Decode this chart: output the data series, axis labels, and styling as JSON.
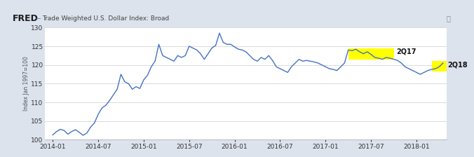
{
  "title": "Trade Weighted U.S. Dollar Index: Broad",
  "ylabel": "Index Jan 1997=100",
  "ylim": [
    100,
    130
  ],
  "yticks": [
    100,
    105,
    110,
    115,
    120,
    125,
    130
  ],
  "line_color": "#4472C4",
  "highlight_color": "#FFFF00",
  "bg_color": "#DCE3ED",
  "plot_bg_color": "#FFFFFF",
  "header_bg": "#D0D8E6",
  "annotation_2q17": "2Q17",
  "annotation_2q18": "2Q18",
  "xtick_positions": [
    0,
    6,
    12,
    18,
    24,
    30,
    36,
    42,
    48
  ],
  "xtick_labels": [
    "2014-01",
    "2014-07",
    "2015-01",
    "2015-07",
    "2016-01",
    "2016-07",
    "2017-01",
    "2017-07",
    "2018-01"
  ],
  "xlim": [
    -1,
    52
  ],
  "h2q17_x1": 39,
  "h2q17_x2": 45,
  "h2q17_y1": 121.5,
  "h2q17_y2": 124.5,
  "h2q18_x1": 50,
  "h2q18_x2": 52,
  "h2q18_y1": 118.3,
  "h2q18_y2": 121.0,
  "series": [
    [
      0.0,
      101.3
    ],
    [
      0.5,
      102.2
    ],
    [
      1.0,
      102.8
    ],
    [
      1.5,
      102.5
    ],
    [
      2.0,
      101.5
    ],
    [
      2.5,
      102.2
    ],
    [
      3.0,
      102.7
    ],
    [
      3.5,
      102.0
    ],
    [
      4.0,
      101.2
    ],
    [
      4.5,
      101.8
    ],
    [
      5.0,
      103.4
    ],
    [
      5.5,
      104.5
    ],
    [
      6.0,
      106.8
    ],
    [
      6.5,
      108.5
    ],
    [
      7.0,
      109.2
    ],
    [
      7.5,
      110.5
    ],
    [
      8.0,
      112.0
    ],
    [
      8.5,
      113.5
    ],
    [
      9.0,
      117.5
    ],
    [
      9.5,
      115.5
    ],
    [
      10.0,
      115.0
    ],
    [
      10.5,
      113.5
    ],
    [
      11.0,
      114.2
    ],
    [
      11.5,
      113.7
    ],
    [
      12.0,
      116.0
    ],
    [
      12.5,
      117.2
    ],
    [
      13.0,
      119.5
    ],
    [
      13.5,
      121.0
    ],
    [
      14.0,
      125.5
    ],
    [
      14.5,
      122.5
    ],
    [
      15.0,
      122.0
    ],
    [
      15.5,
      121.5
    ],
    [
      16.0,
      121.0
    ],
    [
      16.5,
      122.5
    ],
    [
      17.0,
      122.0
    ],
    [
      17.5,
      122.5
    ],
    [
      18.0,
      125.0
    ],
    [
      18.5,
      124.5
    ],
    [
      19.0,
      124.0
    ],
    [
      19.5,
      123.0
    ],
    [
      20.0,
      121.5
    ],
    [
      20.5,
      123.0
    ],
    [
      21.0,
      124.5
    ],
    [
      21.5,
      125.2
    ],
    [
      22.0,
      128.5
    ],
    [
      22.5,
      126.0
    ],
    [
      23.0,
      125.5
    ],
    [
      23.5,
      125.5
    ],
    [
      24.0,
      124.8
    ],
    [
      24.5,
      124.2
    ],
    [
      25.0,
      124.0
    ],
    [
      25.5,
      123.5
    ],
    [
      26.0,
      122.5
    ],
    [
      26.5,
      121.5
    ],
    [
      27.0,
      121.0
    ],
    [
      27.5,
      122.0
    ],
    [
      28.0,
      121.5
    ],
    [
      28.5,
      122.5
    ],
    [
      29.0,
      121.2
    ],
    [
      29.5,
      119.5
    ],
    [
      30.0,
      119.0
    ],
    [
      30.5,
      118.5
    ],
    [
      31.0,
      118.0
    ],
    [
      31.5,
      119.5
    ],
    [
      32.0,
      120.5
    ],
    [
      32.5,
      121.5
    ],
    [
      33.0,
      121.0
    ],
    [
      33.5,
      121.2
    ],
    [
      34.0,
      121.0
    ],
    [
      34.5,
      120.8
    ],
    [
      35.0,
      120.5
    ],
    [
      35.5,
      120.0
    ],
    [
      36.0,
      119.5
    ],
    [
      36.5,
      119.0
    ],
    [
      37.0,
      118.8
    ],
    [
      37.5,
      118.5
    ],
    [
      38.0,
      119.5
    ],
    [
      38.5,
      120.5
    ],
    [
      39.0,
      124.0
    ],
    [
      39.5,
      123.8
    ],
    [
      40.0,
      124.2
    ],
    [
      40.5,
      123.5
    ],
    [
      41.0,
      123.0
    ],
    [
      41.5,
      123.5
    ],
    [
      42.0,
      122.8
    ],
    [
      42.5,
      122.0
    ],
    [
      43.0,
      121.8
    ],
    [
      43.5,
      121.5
    ],
    [
      44.0,
      122.0
    ],
    [
      44.5,
      121.8
    ],
    [
      45.0,
      121.5
    ],
    [
      45.5,
      121.2
    ],
    [
      46.0,
      120.5
    ],
    [
      46.5,
      119.5
    ],
    [
      47.0,
      119.0
    ],
    [
      47.5,
      118.5
    ],
    [
      48.0,
      118.0
    ],
    [
      48.5,
      117.5
    ],
    [
      49.0,
      118.0
    ],
    [
      49.5,
      118.5
    ],
    [
      50.0,
      118.8
    ],
    [
      50.5,
      119.0
    ],
    [
      51.0,
      119.5
    ],
    [
      51.5,
      120.5
    ]
  ]
}
